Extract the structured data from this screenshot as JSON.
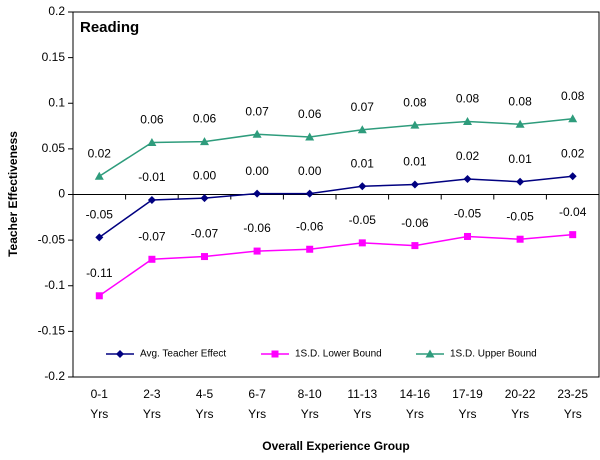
{
  "chart_data": {
    "type": "line",
    "title": "Reading",
    "x_label": "Overall Experience Group",
    "y_label": "Teacher Effectiveness",
    "categories": [
      "0-1 Yrs",
      "2-3 Yrs",
      "4-5 Yrs",
      "6-7 Yrs",
      "8-10 Yrs",
      "11-13 Yrs",
      "14-16 Yrs",
      "17-19 Yrs",
      "20-22 Yrs",
      "23-25 Yrs"
    ],
    "series": [
      {
        "name": "Avg. Teacher Effect",
        "color": "#000080",
        "marker": "diamond",
        "values": [
          -0.047,
          -0.006,
          -0.004,
          0.001,
          0.001,
          0.009,
          0.011,
          0.017,
          0.014,
          0.02
        ],
        "value_labels": [
          "-0.05",
          "-0.01",
          "0.00",
          "0.00",
          "0.00",
          "0.01",
          "0.01",
          "0.02",
          "0.01",
          "0.02"
        ]
      },
      {
        "name": "1S.D. Lower Bound",
        "color": "#ff00ff",
        "marker": "square",
        "values": [
          -0.111,
          -0.071,
          -0.068,
          -0.062,
          -0.06,
          -0.053,
          -0.056,
          -0.046,
          -0.049,
          -0.044
        ],
        "value_labels": [
          "-0.11",
          "-0.07",
          "-0.07",
          "-0.06",
          "-0.06",
          "-0.05",
          "-0.06",
          "-0.05",
          "-0.05",
          "-0.04"
        ]
      },
      {
        "name": "1S.D. Upper Bound",
        "color": "#2e9c7c",
        "marker": "triangle",
        "values": [
          0.02,
          0.057,
          0.058,
          0.066,
          0.063,
          0.071,
          0.076,
          0.08,
          0.077,
          0.083
        ],
        "value_labels": [
          "0.02",
          "0.06",
          "0.06",
          "0.07",
          "0.06",
          "0.07",
          "0.08",
          "0.08",
          "0.08",
          "0.08"
        ]
      }
    ],
    "ylim": [
      -0.2,
      0.2
    ],
    "yticks": [
      0.2,
      0.15,
      0.1,
      0.05,
      0,
      -0.05,
      -0.1,
      -0.15,
      -0.2
    ],
    "legend": "bottom"
  }
}
